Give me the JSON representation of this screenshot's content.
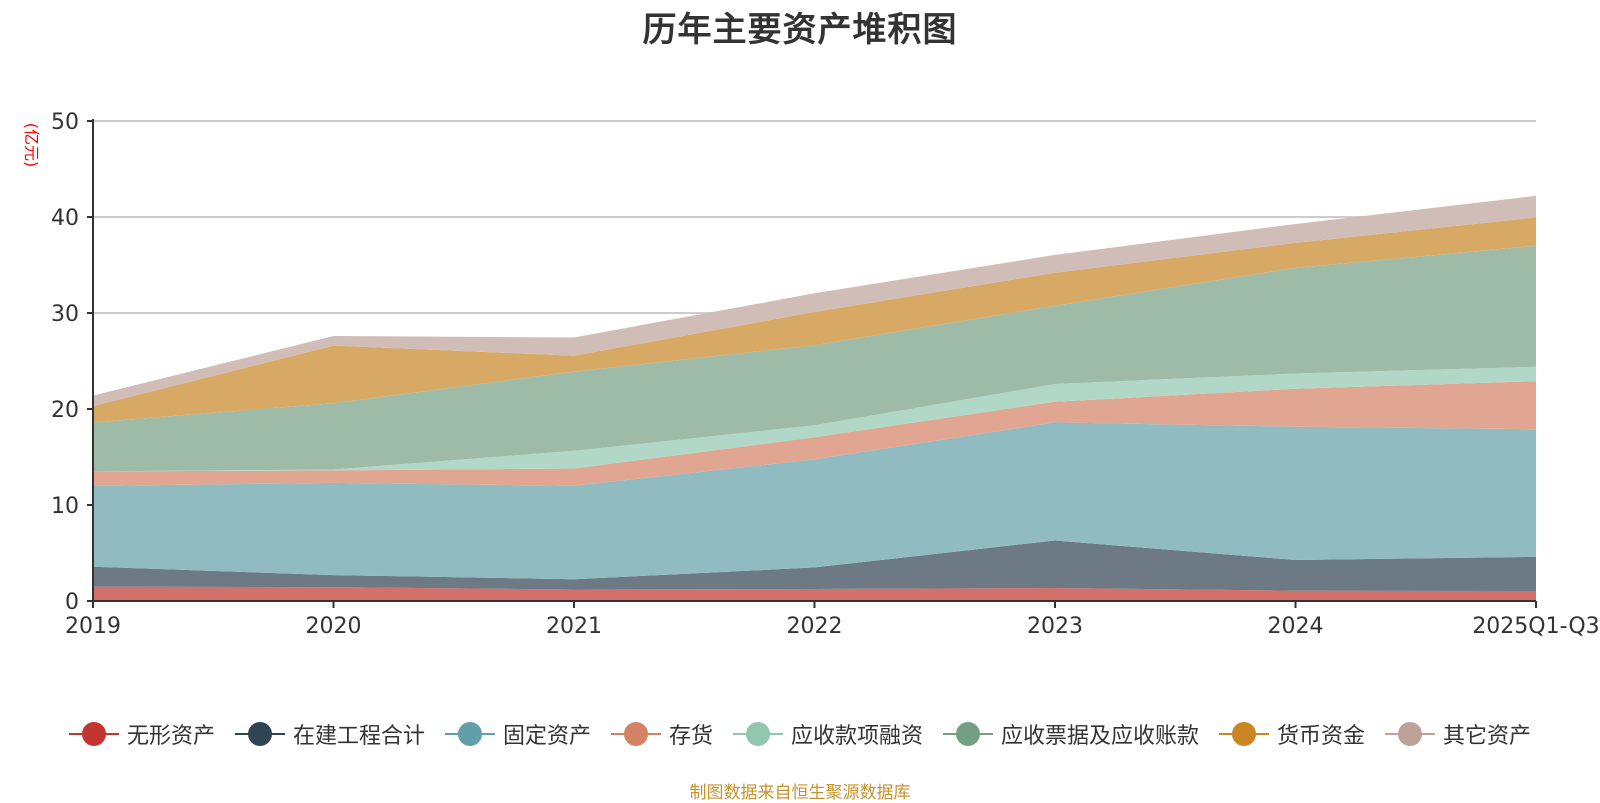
{
  "chart_data": {
    "type": "area",
    "stacked": true,
    "title": "历年主要资产堆积图",
    "xlabel": "",
    "ylabel": "(亿元)",
    "ylim": [
      0,
      50
    ],
    "yticks": [
      0,
      10,
      20,
      30,
      40,
      50
    ],
    "grid": true,
    "legend_position": "bottom",
    "categories": [
      "2019",
      "2020",
      "2021",
      "2022",
      "2023",
      "2024",
      "2025Q1-Q3"
    ],
    "series": [
      {
        "name": "无形资产",
        "color": "#c23531",
        "fill": "#d4706c",
        "values": [
          1.49,
          1.45,
          1.2,
          1.25,
          1.35,
          1.07,
          1.04
        ]
      },
      {
        "name": "在建工程合计",
        "color": "#2f4554",
        "fill": "#6d7a85",
        "values": [
          2.08,
          1.25,
          1.06,
          2.25,
          4.95,
          3.2,
          3.56
        ]
      },
      {
        "name": "固定资产",
        "color": "#61a0a8",
        "fill": "#90bbc1",
        "values": [
          8.41,
          9.6,
          9.74,
          11.25,
          12.3,
          13.89,
          13.3
        ]
      },
      {
        "name": "存货",
        "color": "#d48265",
        "fill": "#e1a692",
        "values": [
          1.52,
          1.3,
          1.8,
          2.3,
          2.15,
          3.94,
          5.0
        ]
      },
      {
        "name": "应收款项融资",
        "color": "#91c7ae",
        "fill": "#b1d8c6",
        "values": [
          0.0,
          0.1,
          1.85,
          1.25,
          1.85,
          1.6,
          1.5
        ]
      },
      {
        "name": "应收票据及应收账款",
        "color": "#749f83",
        "fill": "#9ebba8",
        "values": [
          5.1,
          6.9,
          8.25,
          8.35,
          8.15,
          11.0,
          12.6
        ]
      },
      {
        "name": "货币资金",
        "color": "#ca8622",
        "fill": "#d8a964",
        "values": [
          1.7,
          6.0,
          1.65,
          3.45,
          3.45,
          2.6,
          2.96
        ]
      },
      {
        "name": "其它资产",
        "color": "#bda29a",
        "fill": "#d1bdb8",
        "values": [
          1.1,
          1.0,
          1.9,
          1.95,
          1.85,
          1.97,
          2.24
        ]
      }
    ]
  },
  "source_note": "制图数据来自恒生聚源数据库"
}
